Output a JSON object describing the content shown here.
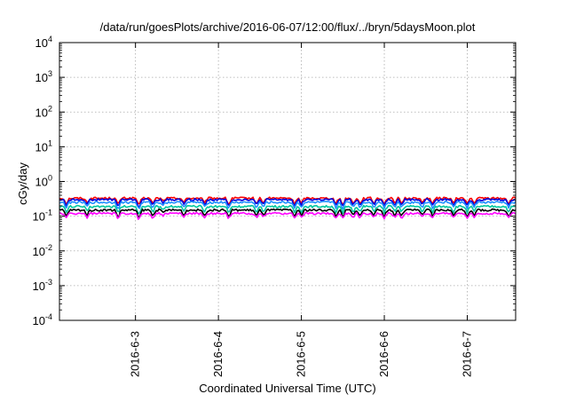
{
  "chart_data": {
    "type": "line",
    "title": "/data/run/goesPlots/archive/2016-06-07/12:00/flux/../bryn/5daysMoon.plot",
    "xlabel": "Coordinated Universal Time (UTC)",
    "ylabel": "cGy/day",
    "yscale": "log",
    "ylim": [
      0.0001,
      10000
    ],
    "xlim": [
      "2016-06-02 02:00",
      "2016-06-07 14:00"
    ],
    "grid": true,
    "legend": "none",
    "y_ticks": [
      {
        "value": 0.0001,
        "base": "10",
        "exp": "-4"
      },
      {
        "value": 0.001,
        "base": "10",
        "exp": "-3"
      },
      {
        "value": 0.01,
        "base": "10",
        "exp": "-2"
      },
      {
        "value": 0.1,
        "base": "10",
        "exp": "-1"
      },
      {
        "value": 1,
        "base": "10",
        "exp": "0"
      },
      {
        "value": 10,
        "base": "10",
        "exp": "1"
      },
      {
        "value": 100,
        "base": "10",
        "exp": "2"
      },
      {
        "value": 1000,
        "base": "10",
        "exp": "3"
      },
      {
        "value": 10000,
        "base": "10",
        "exp": "4"
      }
    ],
    "x_ticks": [
      {
        "value": "2016-06-03 00:00",
        "label": "2016-6-3"
      },
      {
        "value": "2016-06-04 00:00",
        "label": "2016-6-4"
      },
      {
        "value": "2016-06-05 00:00",
        "label": "2016-6-5"
      },
      {
        "value": "2016-06-06 00:00",
        "label": "2016-6-6"
      },
      {
        "value": "2016-06-07 00:00",
        "label": "2016-6-7"
      }
    ],
    "series": [
      {
        "color": "#ff0000",
        "level": 0.33,
        "dip": 0.55
      },
      {
        "color": "#0000dd",
        "level": 0.3,
        "dip": 0.55
      },
      {
        "color": "#1e90ff",
        "level": 0.25,
        "dip": 0.5
      },
      {
        "color": "#00c8a0",
        "level": 0.19,
        "dip": 0.55
      },
      {
        "color": "#000000",
        "level": 0.15,
        "dip": 0.6
      },
      {
        "color": "#ff00ff",
        "level": 0.12,
        "dip": 0.45
      }
    ],
    "dips": [
      {
        "t": "2016-06-02 04:00",
        "depth": 0.6
      },
      {
        "t": "2016-06-02 10:00",
        "depth": 0.5
      },
      {
        "t": "2016-06-02 19:00",
        "depth": 0.7
      },
      {
        "t": "2016-06-03 01:00",
        "depth": 0.8
      },
      {
        "t": "2016-06-03 05:00",
        "depth": 0.6
      },
      {
        "t": "2016-06-03 08:00",
        "depth": 0.3
      },
      {
        "t": "2016-06-03 14:00",
        "depth": 0.5
      },
      {
        "t": "2016-06-03 20:00",
        "depth": 0.55
      },
      {
        "t": "2016-06-04 03:00",
        "depth": 0.7
      },
      {
        "t": "2016-06-04 11:00",
        "depth": 0.6
      },
      {
        "t": "2016-06-04 13:00",
        "depth": 0.55
      },
      {
        "t": "2016-06-04 22:00",
        "depth": 0.6
      },
      {
        "t": "2016-06-05 00:00",
        "depth": 0.55
      },
      {
        "t": "2016-06-05 10:00",
        "depth": 0.6
      },
      {
        "t": "2016-06-05 12:00",
        "depth": 0.65
      },
      {
        "t": "2016-06-05 15:00",
        "depth": 0.55
      },
      {
        "t": "2016-06-05 17:00",
        "depth": 0.6
      },
      {
        "t": "2016-06-05 21:00",
        "depth": 0.55
      },
      {
        "t": "2016-06-06 00:00",
        "depth": 0.6
      },
      {
        "t": "2016-06-06 03:00",
        "depth": 0.55
      },
      {
        "t": "2016-06-06 05:00",
        "depth": 0.6
      },
      {
        "t": "2016-06-06 11:00",
        "depth": 0.55
      },
      {
        "t": "2016-06-06 14:00",
        "depth": 0.6
      },
      {
        "t": "2016-06-06 20:00",
        "depth": 0.55
      },
      {
        "t": "2016-06-07 00:00",
        "depth": 0.6
      },
      {
        "t": "2016-06-07 02:00",
        "depth": 0.55
      },
      {
        "t": "2016-06-07 12:00",
        "depth": 0.6
      }
    ]
  }
}
